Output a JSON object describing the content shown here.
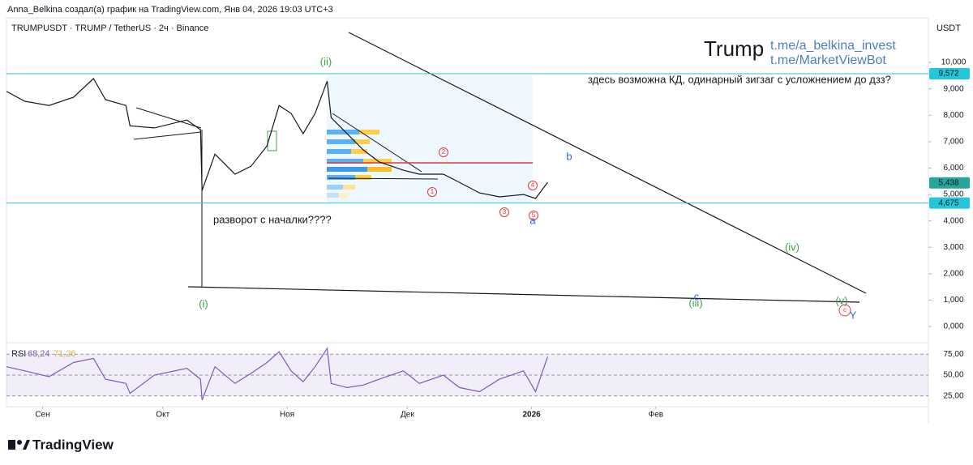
{
  "header": {
    "credit": "Anna_Belkina создал(а) график на TradingView.com, Янв 04, 2026 19:03 UTC+3",
    "symbol": "TRUMPUSDT · TRUMP / TetherUS · 2ч · Binance",
    "currency": "USDT",
    "logo": "TradingView"
  },
  "chart_data": [
    {
      "type": "line",
      "title": "Trump",
      "subtitle": [
        "t.me/a_belkina_invest",
        "t.me/MarketViewBot"
      ],
      "x": [
        -9,
        -4.4,
        1.6,
        7.7,
        12.7,
        15.7,
        20.8,
        21.8,
        27.9,
        36,
        39.4,
        39.8,
        43,
        48,
        52,
        56,
        59,
        62,
        65,
        68,
        71,
        72,
        76,
        80,
        84,
        90,
        94,
        100,
        104,
        109,
        114,
        120,
        123,
        126
      ],
      "series": [
        {
          "name": "TRUMPUSDT",
          "color": "#131722",
          "values": [
            8900,
            8530,
            8370,
            8680,
            9390,
            8590,
            8370,
            7600,
            7520,
            7820,
            7450,
            5150,
            6530,
            5770,
            6070,
            6840,
            8370,
            8070,
            7300,
            8070,
            9290,
            7910,
            7300,
            6690,
            6230,
            5920,
            5770,
            5770,
            5460,
            5060,
            4910,
            5000,
            4850,
            5460
          ]
        }
      ],
      "xlim": [
        -9,
        221
      ],
      "xticks": [
        {
          "value": 0,
          "label": "Сен"
        },
        {
          "value": 30,
          "label": "Окт"
        },
        {
          "value": 61,
          "label": "Ноя"
        },
        {
          "value": 91,
          "label": "Дек"
        },
        {
          "value": 122,
          "label": "2026"
        },
        {
          "value": 153,
          "label": "Фев"
        }
      ],
      "ylim": [
        -520,
        11690
      ],
      "yticks": [
        {
          "value": 0,
          "label": "0,000"
        },
        {
          "value": 1000,
          "label": "1,000"
        },
        {
          "value": 2000,
          "label": "2,000"
        },
        {
          "value": 3000,
          "label": "3,000"
        },
        {
          "value": 4000,
          "label": "4,000"
        },
        {
          "value": 5000,
          "label": "5,000"
        },
        {
          "value": 6000,
          "label": "6,000"
        },
        {
          "value": 7000,
          "label": "7,000"
        },
        {
          "value": 8000,
          "label": "8,000"
        },
        {
          "value": 9000,
          "label": "9,000"
        },
        {
          "value": 10000,
          "label": "10,000"
        }
      ],
      "price_lines": [
        {
          "value": 9572,
          "label": "9,572",
          "color": "#26c6da"
        },
        {
          "value": 5438,
          "label": "5,438",
          "color": "#26a69a"
        },
        {
          "value": 4675,
          "label": "4,675",
          "color": "#26c6da"
        }
      ],
      "annotations": [
        "(ii)",
        "(i)",
        "(iii)",
        "(iv)",
        "(v)",
        "b",
        "a",
        "c",
        "Y",
        "1",
        "2",
        "3",
        "4",
        "5",
        "c",
        "разворот с началки????",
        "здесь возможна КД, одинарный зигзаг с усложнением до дзз?"
      ]
    },
    {
      "type": "line",
      "title": "RSI",
      "legend_values": [
        "68,24",
        "71,26"
      ],
      "x": [
        -9,
        -4.4,
        1.6,
        7.7,
        12.7,
        15.7,
        20.8,
        21.8,
        27.9,
        36,
        39.4,
        39.8,
        43,
        48,
        52,
        56,
        59,
        62,
        65,
        68,
        71,
        72,
        76,
        80,
        84,
        90,
        94,
        100,
        104,
        109,
        114,
        120,
        123,
        126
      ],
      "series": [
        {
          "name": "RSI",
          "color": "#7e57c2",
          "values": [
            60,
            55,
            48,
            65,
            70,
            45,
            40,
            28,
            50,
            58,
            45,
            20,
            60,
            40,
            52,
            65,
            78,
            55,
            42,
            60,
            82,
            40,
            35,
            38,
            45,
            55,
            40,
            50,
            35,
            30,
            45,
            55,
            30,
            72
          ]
        }
      ],
      "xlim": [
        -9,
        221
      ],
      "ylim": [
        14,
        84
      ],
      "yticks": [
        {
          "value": 25,
          "label": "25,00"
        },
        {
          "value": 50,
          "label": "50,00"
        },
        {
          "value": 75,
          "label": "75,00"
        }
      ]
    }
  ]
}
